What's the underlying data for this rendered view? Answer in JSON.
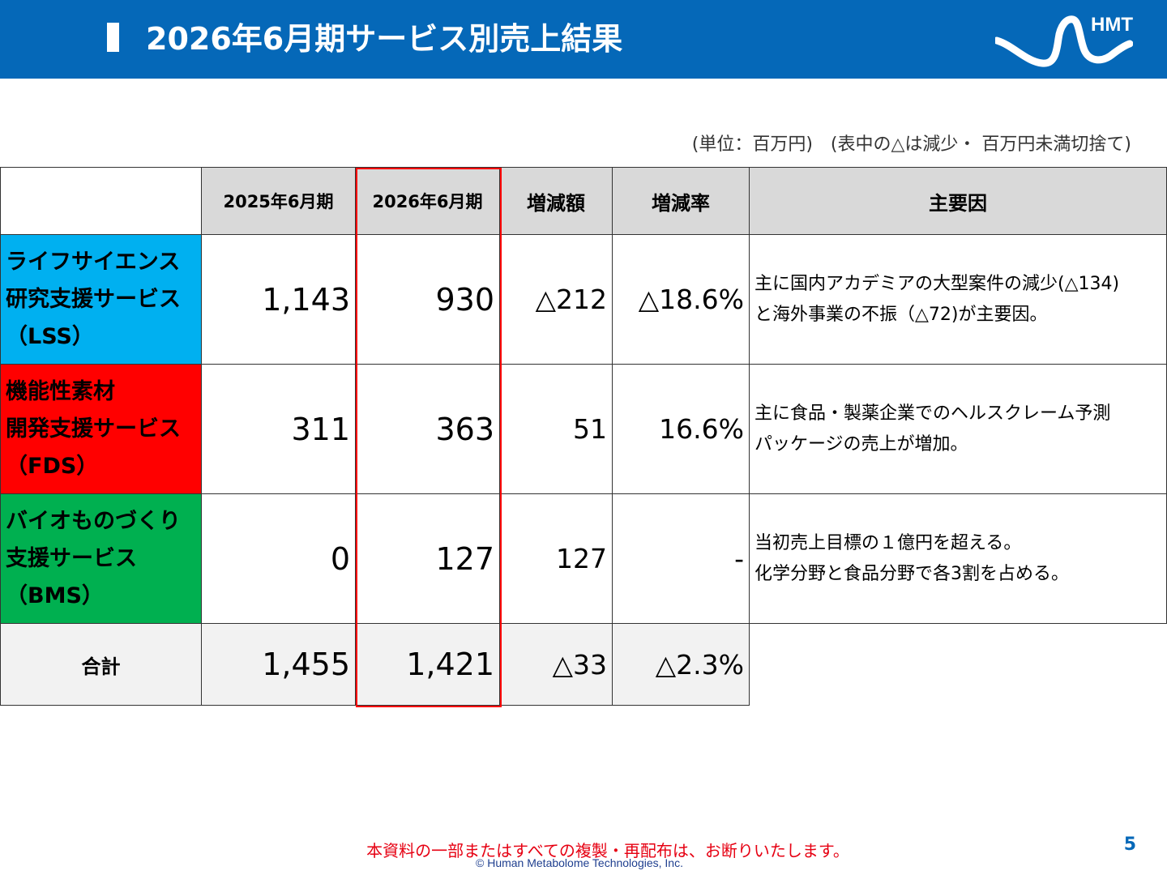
{
  "header": {
    "title": "2026年6月期サービス別売上結果",
    "logo_text": "HMT",
    "color": "#0568b8"
  },
  "unit_note": "(単位：百万円)　(表中の△は減少・ 百万円未満切捨て)",
  "table": {
    "columns": [
      "2025年6月期",
      "2026年6月期",
      "増減額",
      "増減率",
      "主要因"
    ],
    "rows": [
      {
        "name_lines": [
          "ライフサイエンス",
          "研究支援サービス",
          "（LSS）"
        ],
        "color": "#00b0f0",
        "fy2025": "1,143",
        "fy2026": "930",
        "change": "△212",
        "rate": "△18.6%",
        "factor_lines": [
          "主に国内アカデミアの大型案件の減少(△134)",
          "と海外事業の不振（△72)が主要因。"
        ]
      },
      {
        "name_lines": [
          "機能性素材",
          "開発支援サービス",
          "（FDS）"
        ],
        "color": "#ff0000",
        "fy2025": "311",
        "fy2026": "363",
        "change": "51",
        "rate": "16.6%",
        "factor_lines": [
          "主に食品・製薬企業でのヘルスクレーム予測",
          "パッケージの売上が増加。"
        ]
      },
      {
        "name_lines": [
          "バイオものづくり",
          "支援サービス",
          "（BMS）"
        ],
        "color": "#00b050",
        "fy2025": "0",
        "fy2026": "127",
        "change": "127",
        "rate": "-",
        "factor_lines": [
          "当初売上目標の１億円を超える。",
          "化学分野と食品分野で各3割を占める。"
        ]
      }
    ],
    "total": {
      "label": "合計",
      "fy2025": "1,455",
      "fy2026": "1,421",
      "change": "△33",
      "rate": "△2.3%"
    }
  },
  "footer": {
    "note": "本資料の一部またはすべての複製・再配布は、お断りいたします。",
    "copyright": "© Human Metabolome Technologies, Inc.",
    "page": "5"
  }
}
